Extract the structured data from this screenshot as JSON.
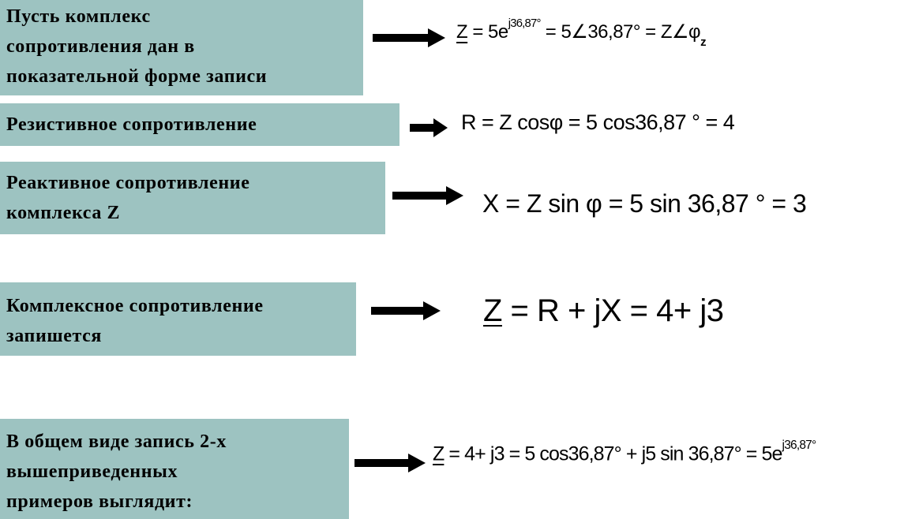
{
  "colors": {
    "label_bg": "#9dc3c1",
    "text": "#000000",
    "arrow": "#000000",
    "page_bg": "#ffffff"
  },
  "rows": [
    {
      "label_lines": [
        "Пусть комплекс",
        "сопротивления дан в",
        "показательной форме записи"
      ],
      "formula": {
        "z": "Z",
        "p1": " = 5e",
        "sup1": "j36,87°",
        "p2": " = 5∠36,87° = Z∠φ",
        "sub1": "z"
      }
    },
    {
      "label_lines": [
        "Резистивное сопротивление"
      ],
      "formula": {
        "p1": "R = Z cosφ = 5 cos36,87 ° = 4"
      }
    },
    {
      "label_lines": [
        "Реактивное сопротивление",
        "комплекса Z"
      ],
      "formula": {
        "p1": "X = Z sin φ = 5 sin 36,87 ° = 3"
      }
    },
    {
      "label_lines": [
        "Комплексное сопротивление",
        "запишется"
      ],
      "formula": {
        "z": "Z",
        "p1": " = R + jX = 4+ j3"
      }
    },
    {
      "label_lines": [
        "В общем виде запись 2-х",
        "вышеприведенных",
        "примеров выглядит:"
      ],
      "formula": {
        "z": "Z",
        "p1": " = 4+ j3 = 5 cos36,87° + j5 sin 36,87° = 5e",
        "sup1": "j36,87°"
      }
    }
  ]
}
